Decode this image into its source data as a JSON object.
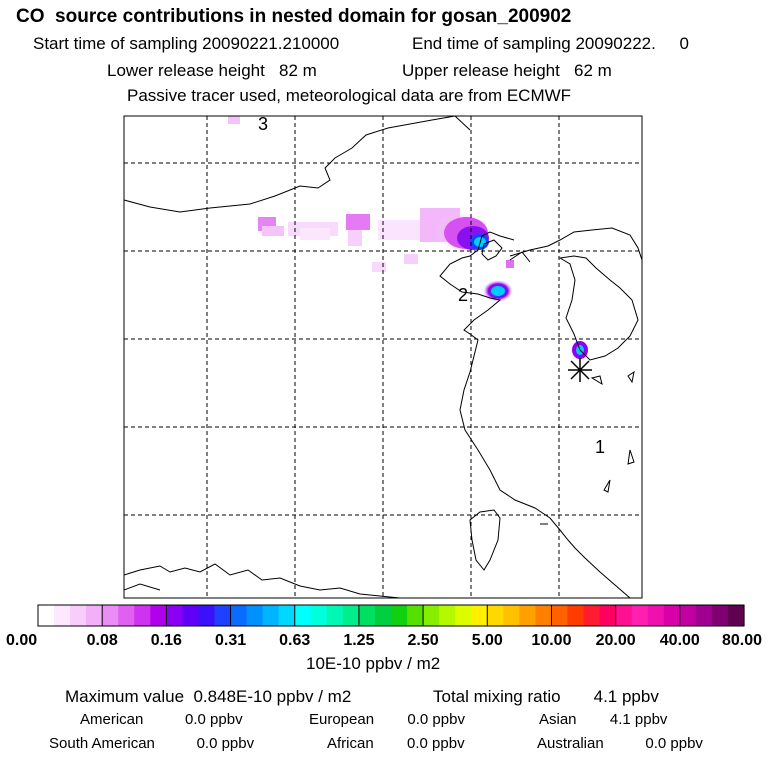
{
  "header": {
    "title": "CO  source contributions in nested domain for gosan_200902",
    "start_label": "Start time of sampling 20090221.210000",
    "end_label": "End time of sampling 20090222.     0",
    "lower_release": "Lower release height   82 m",
    "upper_release": "Upper release height   62 m",
    "subtitle": "Passive tracer used, meteorological data are from ECMWF"
  },
  "chart_data": {
    "type": "heatmap",
    "title": "CO  source contributions in nested domain for gosan_200902",
    "colorbar": {
      "tick_labels": [
        "0.00",
        "0.08",
        "0.16",
        "0.31",
        "0.63",
        "1.25",
        "2.50",
        "5.00",
        "10.00",
        "20.00",
        "40.00",
        "80.00"
      ],
      "tick_values": [
        0.0,
        0.08,
        0.16,
        0.31,
        0.63,
        1.25,
        2.5,
        5.0,
        10.0,
        20.0,
        40.0,
        80.0
      ],
      "units": "10E-10 ppbv / m2",
      "colors": [
        "#ffffff",
        "#fde8ff",
        "#f8ccfb",
        "#f1b0f8",
        "#ea8ef5",
        "#e060f2",
        "#cf33ef",
        "#b200ee",
        "#8a00f2",
        "#6200f7",
        "#3b10fb",
        "#2040ff",
        "#0a6cff",
        "#0090ff",
        "#00b4ff",
        "#00d8ff",
        "#00ffff",
        "#00ffdc",
        "#00f8b4",
        "#00ee8c",
        "#00e060",
        "#00d040",
        "#10d010",
        "#55e000",
        "#88ee00",
        "#b6f800",
        "#dcfc00",
        "#fff000",
        "#ffd800",
        "#ffc000",
        "#ffa000",
        "#ff8000",
        "#ff6000",
        "#ff3c00",
        "#ff1c30",
        "#ff0060",
        "#ff1090",
        "#ff20b0",
        "#f010b0",
        "#d800a8",
        "#c000a0",
        "#a00090",
        "#800070",
        "#600050"
      ]
    },
    "markers": [
      {
        "label": "1"
      },
      {
        "label": "2"
      },
      {
        "label": "3"
      }
    ],
    "receptor": "gosan"
  },
  "stats": {
    "max_value": "Maximum value  0.848E-10 ppbv / m2",
    "total_mixing": "Total mixing ratio       4.1 ppbv",
    "american": "American          0.0 ppbv",
    "european": "European        0.0 ppbv",
    "asian": "Asian        4.1 ppbv",
    "south_american": "South American          0.0 ppbv",
    "african": "African        0.0 ppbv",
    "australian": "Australian          0.0 ppbv"
  }
}
